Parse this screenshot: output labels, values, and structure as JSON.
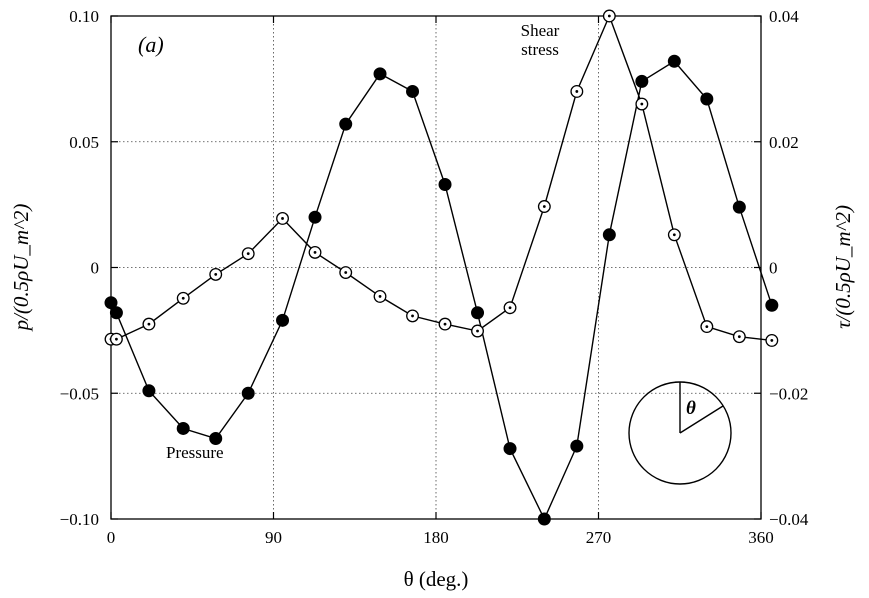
{
  "chart_data": {
    "type": "line",
    "panel_label": "(a)",
    "xlabel": "θ (deg.)",
    "ylabel_left": "p/(0.5ρU_m^2)",
    "ylabel_right": "τ/(0.5ρU_m^2)",
    "xlim": [
      0,
      360
    ],
    "ylim_left": [
      -0.1,
      0.1
    ],
    "ylim_right": [
      -0.04,
      0.04
    ],
    "x_ticks": [
      "0",
      "90",
      "180",
      "270",
      "360"
    ],
    "y_left_ticks": [
      "0.10",
      "0.05",
      "0",
      "−0.05",
      "−0.10"
    ],
    "y_right_ticks": [
      "0.04",
      "0.02",
      "0",
      "−0.02",
      "−0.04"
    ],
    "grid": true,
    "annotations": {
      "pressure": "Pressure",
      "shear_line1": "Shear",
      "shear_line2": "stress",
      "inset_theta": "θ"
    },
    "series": [
      {
        "name": "Pressure",
        "axis": "left",
        "marker": "filled-circle",
        "x": [
          0,
          3,
          21,
          40,
          58,
          76,
          95,
          113,
          130,
          149,
          167,
          185,
          203,
          221,
          240,
          258,
          276,
          294,
          312,
          330,
          348,
          366
        ],
        "y": [
          -0.014,
          -0.018,
          -0.049,
          -0.064,
          -0.068,
          -0.05,
          -0.021,
          0.02,
          0.057,
          0.077,
          0.07,
          0.033,
          -0.018,
          -0.072,
          -0.1,
          -0.071,
          0.013,
          0.074,
          0.082,
          0.067,
          0.024,
          -0.015
        ]
      },
      {
        "name": "Shear stress",
        "axis": "right",
        "marker": "open-dotted-circle",
        "x": [
          0,
          3,
          21,
          40,
          58,
          76,
          95,
          113,
          130,
          149,
          167,
          185,
          203,
          221,
          240,
          258,
          276,
          294,
          312,
          330,
          348,
          366
        ],
        "y": [
          -0.0114,
          -0.0114,
          -0.009,
          -0.0049,
          -0.0011,
          0.0022,
          0.0078,
          0.0024,
          -0.0008,
          -0.0046,
          -0.0077,
          -0.009,
          -0.0101,
          -0.0064,
          0.0097,
          0.028,
          0.04,
          0.026,
          0.0052,
          -0.0094,
          -0.011,
          -0.0116
        ]
      }
    ]
  }
}
